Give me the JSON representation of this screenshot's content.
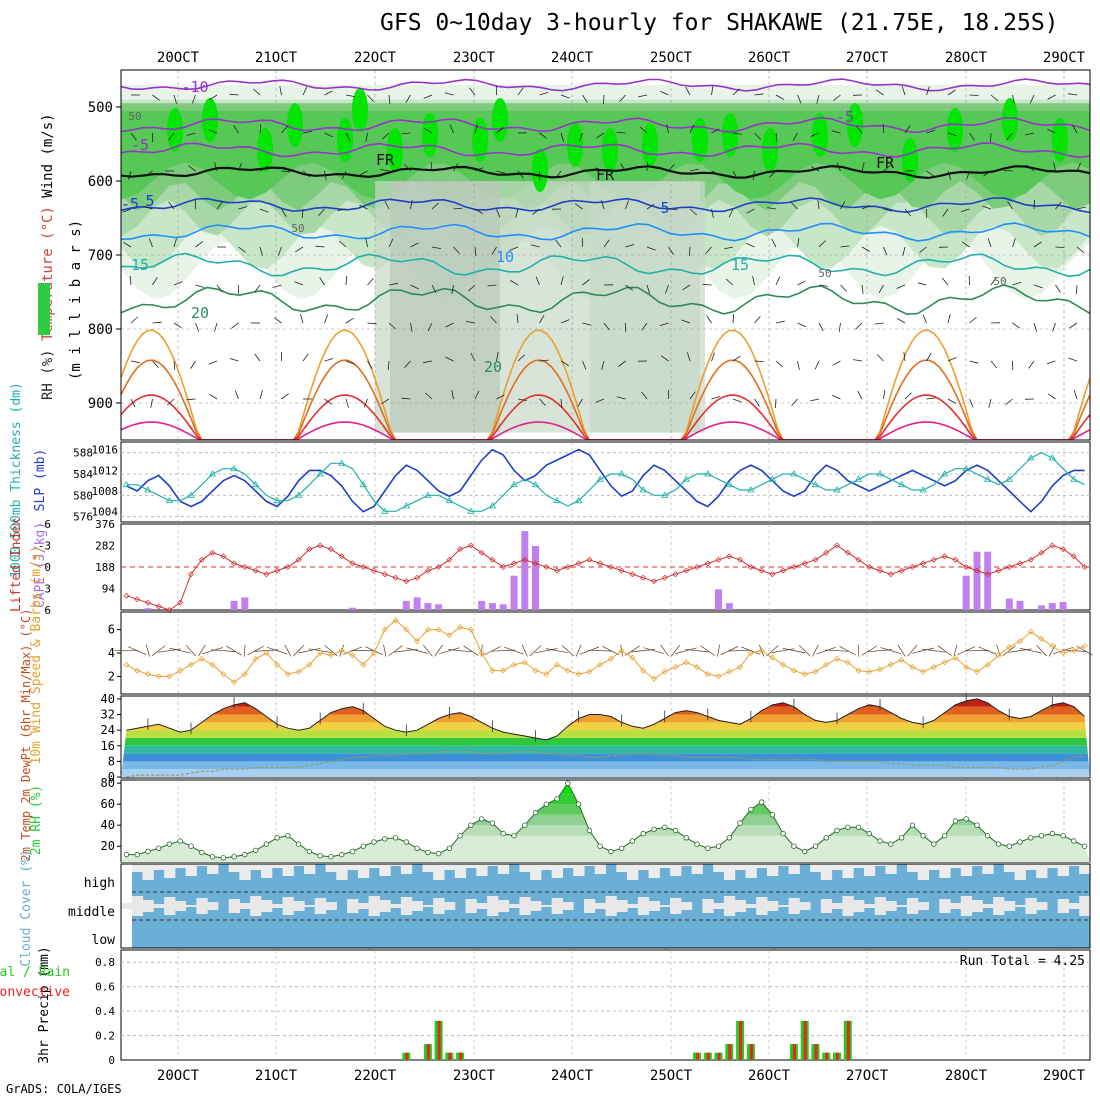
{
  "title": "GFS 0~10day 3-hourly for SHAKAWE (21.75E, 18.25S)",
  "footer": "GrADS: COLA/IGES",
  "colors": {
    "rh_green": "#2ecc40",
    "temp_purple": "#9a32cd",
    "slp_blue": "#1e40c8",
    "thick_cyan": "#20b2aa",
    "li_red": "#d03030",
    "cape_purple": "#c080f0",
    "wind_orange": "#e8a030",
    "cloud_blue": "#6baed6",
    "rain_green": "#22cc22",
    "conv_red": "#ee2222"
  },
  "chart_data": [
    {
      "panel": "upper-air",
      "type": "heatmap",
      "ylabel_parts": [
        "RH (%)",
        "Temperature (°C)",
        "Wind (m/s)"
      ],
      "ylabel2": "(m i l l i b a r s)",
      "yticks": [
        "500",
        "600",
        "700",
        "800",
        "900"
      ],
      "ylim": [
        450,
        950
      ],
      "x_tick_labels": [
        "20OCT",
        "21OCT",
        "22OCT",
        "23OCT",
        "24OCT",
        "25OCT",
        "26OCT",
        "27OCT",
        "28OCT",
        "29OCT"
      ],
      "contour_labels": [
        "-10",
        "-5",
        "-5",
        "FR",
        "FR",
        "FR",
        "-5",
        "5",
        "5",
        "10",
        "15",
        "15",
        "20",
        "20",
        "50",
        "50",
        "50",
        "50"
      ]
    },
    {
      "panel": "slp-thickness",
      "type": "line",
      "ylabel_left": "1000-500mb Thickness (dm)",
      "ylabel_right": "SLP (mb)",
      "yticks_left": [
        "576",
        "580",
        "584",
        "588"
      ],
      "yticks_right": [
        "1004",
        "1008",
        "1012",
        "1016"
      ],
      "series": [
        {
          "name": "SLP (mb)",
          "values": [
            1009,
            1008,
            1010,
            1011,
            1009,
            1006,
            1005,
            1006,
            1008,
            1010,
            1011,
            1010,
            1008,
            1006,
            1005,
            1007,
            1010,
            1012,
            1012,
            1011,
            1009,
            1006,
            1004,
            1005,
            1008,
            1011,
            1013,
            1012,
            1010,
            1008,
            1007,
            1008,
            1011,
            1014,
            1016,
            1015,
            1012,
            1010,
            1011,
            1013,
            1014,
            1015,
            1016,
            1015,
            1012,
            1009,
            1007,
            1008,
            1011,
            1013,
            1012,
            1010,
            1008,
            1006,
            1005,
            1007,
            1010,
            1012,
            1013,
            1012,
            1010,
            1008,
            1007,
            1008,
            1011,
            1013,
            1012,
            1010,
            1009,
            1008,
            1009,
            1010,
            1011,
            1012,
            1011,
            1010,
            1009,
            1010,
            1012,
            1013,
            1012,
            1010,
            1008,
            1006,
            1004,
            1006,
            1009,
            1011,
            1012,
            1012
          ]
        },
        {
          "name": "1000-500mb Thickness (dm)",
          "values": [
            582,
            582,
            581,
            580,
            579,
            579,
            580,
            582,
            584,
            585,
            585,
            584,
            582,
            580,
            579,
            579,
            580,
            582,
            584,
            586,
            586,
            585,
            582,
            579,
            577,
            577,
            578,
            579,
            580,
            580,
            579,
            578,
            577,
            577,
            578,
            580,
            582,
            583,
            582,
            580,
            579,
            578,
            579,
            581,
            583,
            584,
            584,
            583,
            581,
            580,
            580,
            581,
            583,
            584,
            584,
            583,
            582,
            581,
            581,
            582,
            583,
            584,
            584,
            583,
            582,
            581,
            581,
            582,
            583,
            584,
            584,
            583,
            582,
            581,
            581,
            582,
            584,
            585,
            585,
            584,
            583,
            582,
            583,
            585,
            587,
            588,
            587,
            585,
            583,
            582
          ]
        }
      ]
    },
    {
      "panel": "lifted-index-cape",
      "type": "bar",
      "ylabel_left": "Lifted Index",
      "ylabel_right": "CAPE (J/kg)",
      "yticks_left": [
        "-6",
        "-3",
        "0",
        "3",
        "6"
      ],
      "yticks_right": [
        "94",
        "188",
        "282",
        "376"
      ],
      "series": [
        {
          "name": "CAPE (J/kg)",
          "values": [
            0,
            0,
            8,
            0,
            0,
            0,
            0,
            0,
            0,
            0,
            40,
            55,
            0,
            0,
            0,
            0,
            0,
            0,
            0,
            0,
            0,
            10,
            0,
            0,
            0,
            0,
            40,
            55,
            30,
            25,
            0,
            0,
            0,
            40,
            30,
            25,
            150,
            345,
            280,
            0,
            0,
            0,
            0,
            0,
            0,
            0,
            0,
            0,
            0,
            0,
            0,
            0,
            0,
            0,
            0,
            90,
            30,
            0,
            0,
            0,
            0,
            0,
            0,
            0,
            0,
            0,
            0,
            0,
            0,
            0,
            0,
            0,
            0,
            0,
            0,
            0,
            0,
            0,
            150,
            255,
            255,
            0,
            50,
            40,
            0,
            20,
            30,
            35,
            0,
            0
          ]
        },
        {
          "name": "Lifted Index",
          "values": [
            4,
            4.5,
            5,
            5.5,
            6,
            5,
            1,
            -1,
            -2,
            -1.5,
            -0.5,
            0,
            0.5,
            1,
            0.5,
            0,
            -1,
            -2.5,
            -3,
            -2.5,
            -1.5,
            -0.5,
            0,
            0.5,
            1,
            1.5,
            2,
            1.5,
            0.5,
            0,
            -1,
            -2.5,
            -3,
            -2,
            -1,
            0,
            -0.5,
            -1,
            -0.5,
            0,
            0.5,
            0,
            -0.5,
            -1,
            -0.5,
            0,
            0.5,
            1,
            1.5,
            2,
            1.5,
            1,
            0.5,
            0,
            -0.5,
            -1,
            -1.5,
            -1,
            0,
            0.5,
            1,
            0.5,
            0,
            -0.5,
            -1,
            -2,
            -3,
            -2,
            -1,
            0,
            0.5,
            1,
            0.5,
            0,
            -0.5,
            -1,
            -1.5,
            -1,
            0,
            0.5,
            1,
            0.5,
            0,
            -0.5,
            -1,
            -2,
            -3,
            -2.5,
            -1.5,
            0
          ]
        }
      ]
    },
    {
      "panel": "10m-wind",
      "type": "line",
      "ylabel": "10m Wind Speed & Barbs (m/s)",
      "yticks": [
        "2",
        "4",
        "6"
      ],
      "series": [
        {
          "name": "10m Wind Speed",
          "values": [
            3,
            2.5,
            2.2,
            2,
            2,
            2.5,
            3,
            3.5,
            3,
            2.2,
            1.5,
            2.2,
            3.5,
            4,
            3,
            2.2,
            2.4,
            3,
            4,
            3.8,
            4.2,
            3.8,
            3,
            4,
            6,
            6.8,
            6,
            5,
            6,
            6,
            5.5,
            6.2,
            6,
            4,
            2.5,
            2.5,
            3,
            3.2,
            2.5,
            2.2,
            3,
            2.5,
            2.2,
            2.4,
            3,
            3.5,
            4.2,
            3.6,
            2.5,
            1.8,
            2.4,
            2.8,
            3.2,
            2.8,
            2.2,
            2,
            2.4,
            2.8,
            4,
            4.2,
            3.6,
            3,
            2.5,
            2.2,
            2.4,
            3,
            3.5,
            3.2,
            2.5,
            2.4,
            2.6,
            3,
            3.4,
            2.8,
            2.4,
            2.8,
            3.2,
            3.6,
            2.8,
            2.4,
            3,
            3.8,
            4.5,
            5,
            5.8,
            5.2,
            4.6,
            4,
            4.2,
            4.6
          ]
        }
      ]
    },
    {
      "panel": "2m-temperature",
      "type": "area",
      "ylabel": "2m Temp 2m DewPt (6hr Min/Max) (°C)",
      "yticks": [
        "0",
        "8",
        "16",
        "24",
        "32",
        "40"
      ],
      "series": [
        {
          "name": "2m Temp",
          "values": [
            24,
            25,
            26,
            27,
            25,
            23,
            24,
            28,
            32,
            35,
            37,
            38,
            35,
            31,
            27,
            25,
            24,
            25,
            29,
            33,
            35,
            36,
            34,
            30,
            26,
            24,
            23,
            24,
            27,
            30,
            32,
            33,
            31,
            28,
            25,
            23,
            22,
            21,
            20,
            19,
            21,
            26,
            30,
            32,
            32,
            31,
            28,
            26,
            25,
            27,
            30,
            33,
            34,
            33,
            31,
            29,
            28,
            27,
            30,
            34,
            37,
            38,
            36,
            32,
            29,
            28,
            29,
            32,
            35,
            37,
            36,
            33,
            30,
            28,
            27,
            29,
            33,
            37,
            39,
            40,
            38,
            34,
            31,
            30,
            31,
            34,
            37,
            38,
            36,
            31
          ]
        },
        {
          "name": "2m DewPt",
          "values": [
            0,
            1,
            1,
            1,
            1,
            1,
            2,
            3,
            3,
            4,
            4,
            4,
            5,
            5,
            5,
            5,
            5,
            6,
            7,
            8,
            9,
            10,
            10,
            11,
            11,
            11,
            12,
            12,
            12,
            13,
            13,
            13,
            13,
            12,
            12,
            12,
            13,
            13,
            13,
            12,
            12,
            11,
            11,
            10,
            10,
            11,
            11,
            12,
            12,
            12,
            11,
            11,
            10,
            10,
            10,
            10,
            10,
            10,
            9,
            9,
            9,
            9,
            9,
            9,
            9,
            8,
            8,
            8,
            8,
            8,
            8,
            7,
            7,
            6,
            6,
            6,
            6,
            5,
            5,
            5,
            5,
            5,
            4,
            4,
            4,
            5,
            6,
            8,
            10,
            11
          ]
        }
      ]
    },
    {
      "panel": "2m-rh",
      "type": "area",
      "ylabel": "2m RH (%)",
      "yticks": [
        "20",
        "40",
        "60",
        "80"
      ],
      "series": [
        {
          "name": "2m RH",
          "values": [
            12,
            12,
            15,
            18,
            22,
            25,
            20,
            14,
            10,
            9,
            10,
            12,
            16,
            22,
            28,
            30,
            22,
            15,
            11,
            10,
            12,
            15,
            20,
            24,
            27,
            28,
            24,
            18,
            14,
            13,
            18,
            30,
            40,
            46,
            42,
            32,
            30,
            40,
            52,
            60,
            65,
            80,
            60,
            35,
            20,
            15,
            18,
            25,
            32,
            36,
            38,
            35,
            28,
            22,
            18,
            20,
            28,
            42,
            55,
            62,
            50,
            32,
            20,
            15,
            20,
            28,
            35,
            38,
            38,
            32,
            25,
            22,
            28,
            40,
            30,
            22,
            30,
            44,
            46,
            40,
            30,
            22,
            20,
            24,
            28,
            30,
            32,
            30,
            25,
            20
          ]
        }
      ]
    },
    {
      "panel": "cloud-cover",
      "type": "heatmap",
      "ylabel": "Cloud Cover (%)",
      "ytick_labels": [
        "high",
        "middle",
        "low"
      ]
    },
    {
      "panel": "precip",
      "type": "bar",
      "ylabel": "3hr Precip (mm)",
      "legend": [
        "Total / Rain",
        "Convective"
      ],
      "annotation": "Run Total = 4.25",
      "yticks": [
        "0",
        "0.2",
        "0.4",
        "0.6",
        "0.8"
      ],
      "series": [
        {
          "name": "Total",
          "values": [
            0,
            0,
            0,
            0,
            0,
            0,
            0,
            0,
            0,
            0,
            0,
            0,
            0,
            0,
            0,
            0,
            0,
            0,
            0,
            0,
            0,
            0,
            0,
            0,
            0,
            0,
            0.06,
            0,
            0.13,
            0.32,
            0.06,
            0.06,
            0,
            0,
            0,
            0,
            0,
            0,
            0,
            0,
            0,
            0,
            0,
            0,
            0,
            0,
            0,
            0,
            0,
            0,
            0,
            0,
            0,
            0.06,
            0.06,
            0.06,
            0.13,
            0.32,
            0.13,
            0,
            0,
            0,
            0.13,
            0.32,
            0.13,
            0.06,
            0.06,
            0.32,
            0,
            0,
            0,
            0,
            0,
            0,
            0,
            0,
            0,
            0,
            0,
            0,
            0,
            0,
            0,
            0,
            0,
            0,
            0,
            0,
            0,
            0
          ]
        }
      ]
    }
  ]
}
